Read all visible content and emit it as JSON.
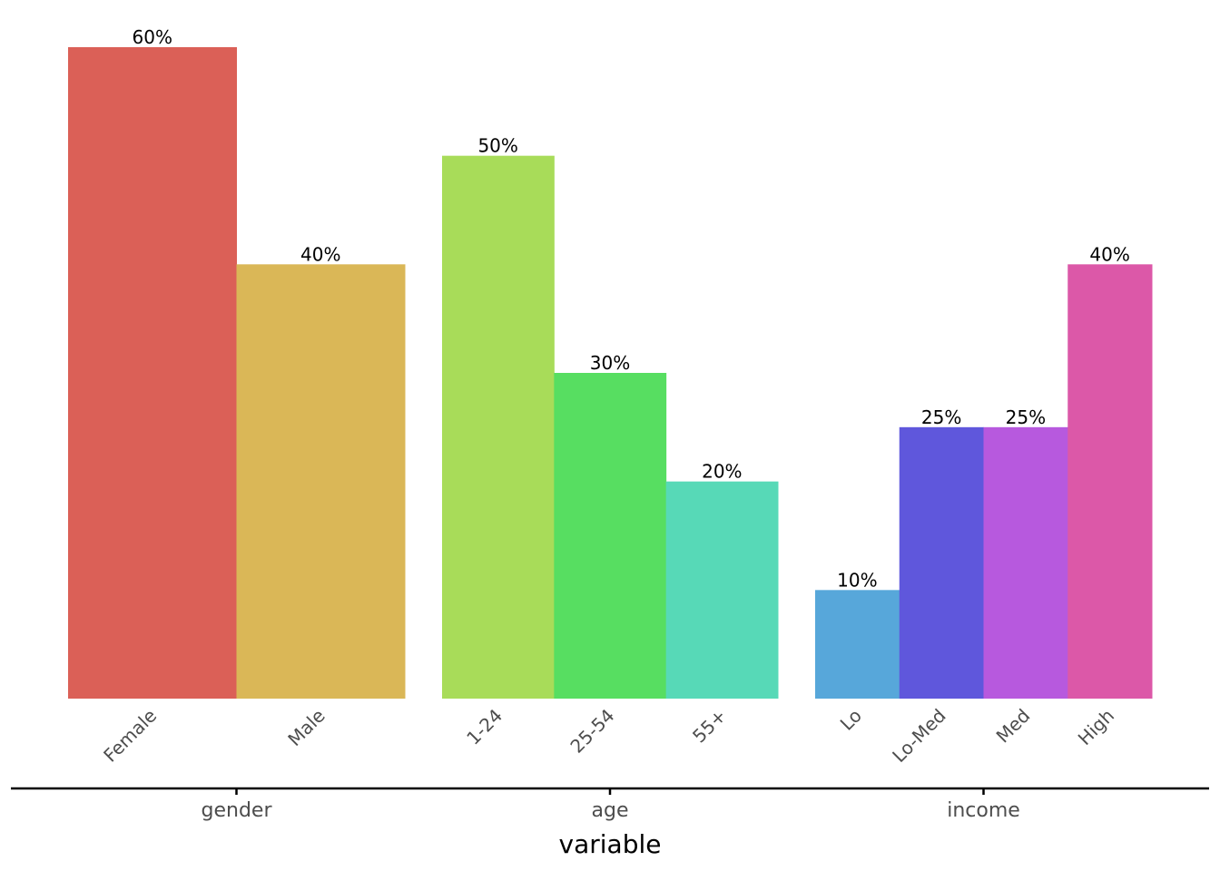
{
  "chart_data": {
    "type": "bar",
    "xlabel": "variable",
    "ylabel": "",
    "title": "",
    "ylim": [
      0,
      60
    ],
    "y_unit": "percent",
    "grid": false,
    "legend": "none",
    "groups": [
      {
        "name": "gender",
        "bars": [
          {
            "category": "Female",
            "value": 60,
            "label": "60%",
            "color": "#DB6057"
          },
          {
            "category": "Male",
            "value": 40,
            "label": "40%",
            "color": "#DAB757"
          }
        ]
      },
      {
        "name": "age",
        "bars": [
          {
            "category": "1-24",
            "value": 50,
            "label": "50%",
            "color": "#A8DC59"
          },
          {
            "category": "25-54",
            "value": 30,
            "label": "30%",
            "color": "#57DE61"
          },
          {
            "category": "55+",
            "value": 20,
            "label": "20%",
            "color": "#57D9B7"
          }
        ]
      },
      {
        "name": "income",
        "bars": [
          {
            "category": "Lo",
            "value": 10,
            "label": "10%",
            "color": "#57A7DA"
          },
          {
            "category": "Lo-Med",
            "value": 25,
            "label": "25%",
            "color": "#5F57DC"
          },
          {
            "category": "Med",
            "value": 25,
            "label": "25%",
            "color": "#B759DE"
          },
          {
            "category": "High",
            "value": 40,
            "label": "40%",
            "color": "#DC58A8"
          }
        ]
      }
    ]
  }
}
